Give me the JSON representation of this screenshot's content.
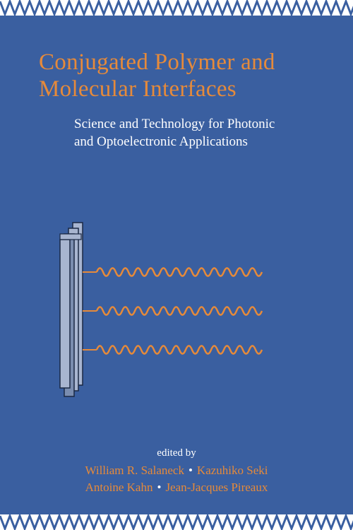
{
  "cover": {
    "background_color": "#3a5fa0",
    "border": {
      "zigzag_color": "#3a5fa0",
      "zigzag_bg": "#ffffff",
      "height": 22,
      "period": 14,
      "amplitude": 9
    },
    "title": {
      "line1": "Conjugated Polymer and",
      "line2": "Molecular Interfaces",
      "color": "#e68a3a",
      "fontsize": 33
    },
    "subtitle": {
      "line1": "Science and Technology for Photonic",
      "line2": "and Optoelectronic Applications",
      "color": "#ffffff",
      "fontsize": 19
    },
    "diagram": {
      "device_fill": "#a8b5d0",
      "device_stroke": "#1a2844",
      "device_inner_fill": "#7a8db0",
      "wave_color": "#e68a3a",
      "wave_count": 3,
      "wave_amplitude": 7,
      "wave_period": 9,
      "wave_length": 230
    },
    "editors": {
      "label": "edited by",
      "label_color": "#ffffff",
      "names": [
        "William R. Salaneck",
        "Kazuhiko Seki",
        "Antoine Kahn",
        "Jean-Jacques Pireaux"
      ],
      "name_color": "#e68a3a",
      "separator": "•",
      "separator_color": "#ffffff",
      "fontsize": 17
    }
  }
}
